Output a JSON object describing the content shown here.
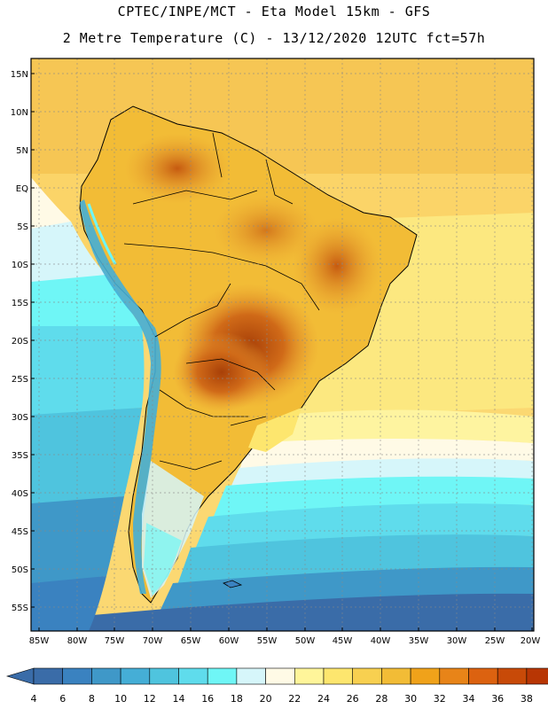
{
  "title_line1": "CPTEC/INPE/MCT -  Eta Model 15km - GFS",
  "title_line2": "2 Metre Temperature (C) - 13/12/2020 12UTC fct=57h",
  "lat_labels": [
    "15N",
    "10N",
    "5N",
    "EQ",
    "5S",
    "10S",
    "15S",
    "20S",
    "25S",
    "30S",
    "35S",
    "40S",
    "45S",
    "50S",
    "55S"
  ],
  "lon_labels": [
    "85W",
    "80W",
    "75W",
    "70W",
    "65W",
    "60W",
    "55W",
    "50W",
    "45W",
    "40W",
    "35W",
    "30W",
    "25W",
    "20W"
  ],
  "legend": {
    "labels": [
      "4",
      "6",
      "8",
      "10",
      "12",
      "14",
      "16",
      "18",
      "20",
      "22",
      "24",
      "26",
      "28",
      "30",
      "32",
      "34",
      "36",
      "38"
    ],
    "colors": [
      "#3a6ca8",
      "#3a82c0",
      "#3f98c8",
      "#45aed6",
      "#4fc4de",
      "#5fdcec",
      "#6ff6f6",
      "#d6f6fa",
      "#fffae6",
      "#fff59a",
      "#fde66e",
      "#f8d050",
      "#f2bc36",
      "#f0a21a",
      "#e88418",
      "#dc6210",
      "#c84a08",
      "#b83604"
    ],
    "low_color": "#3a6ca8",
    "high_color": "#b83604"
  }
}
